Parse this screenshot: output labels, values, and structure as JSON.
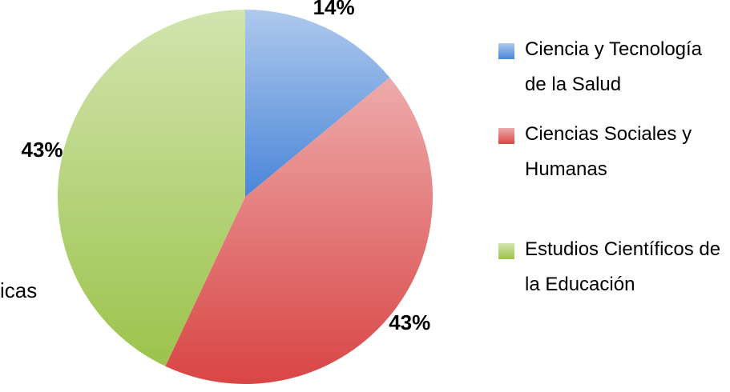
{
  "chart_data": {
    "type": "pie",
    "categories": [
      "Ciencia y Tecnología de la Salud",
      "Ciencias Sociales y Humanas",
      "Estudios Científicos de la Educación"
    ],
    "values": [
      14,
      43,
      43
    ],
    "value_labels": [
      "14%",
      "43%",
      "43%"
    ],
    "colors": [
      "#4a86d8",
      "#d94545",
      "#9cc34c"
    ],
    "legend": "right",
    "annotation": "icas"
  }
}
